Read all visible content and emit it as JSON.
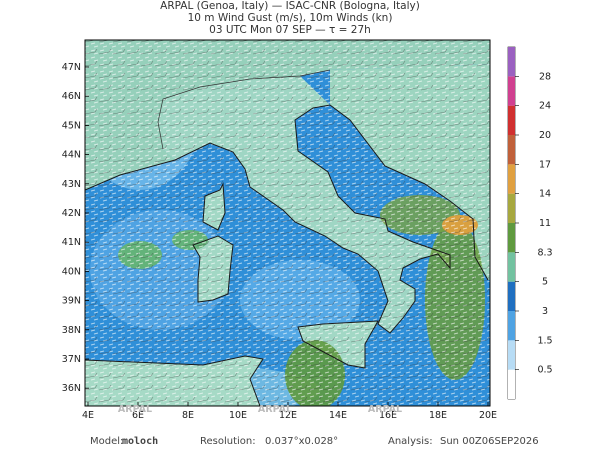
{
  "header": {
    "lines": [
      "ARPAL (Genoa, Italy)  —  ISAC-CNR (Bologna, Italy)",
      "10 m Wind Gust (m/s), 10m Winds (kn)",
      "03 UTC Mon 07 SEP  —  τ = 27h"
    ]
  },
  "map": {
    "lat_labels": [
      "47N",
      "46N",
      "45N",
      "44N",
      "43N",
      "42N",
      "41N",
      "40N",
      "39N",
      "38N",
      "37N",
      "36N"
    ],
    "lon_labels": [
      "4E",
      "6E",
      "8E",
      "10E",
      "12E",
      "14E",
      "16E",
      "18E",
      "20E"
    ],
    "watermark": "ARPAL"
  },
  "colorbar": {
    "labels": [
      "0.5",
      "1.5",
      "3",
      "5",
      "8.3",
      "11",
      "14",
      "17",
      "20",
      "24",
      "28"
    ]
  },
  "footer": {
    "model_label": "Model:",
    "model": "moloch",
    "resolution_label": "Resolution:",
    "resolution": "0.037°x0.028°",
    "analysis_label": "Analysis:",
    "analysis": "Sun 00Z06SEP2026"
  }
}
